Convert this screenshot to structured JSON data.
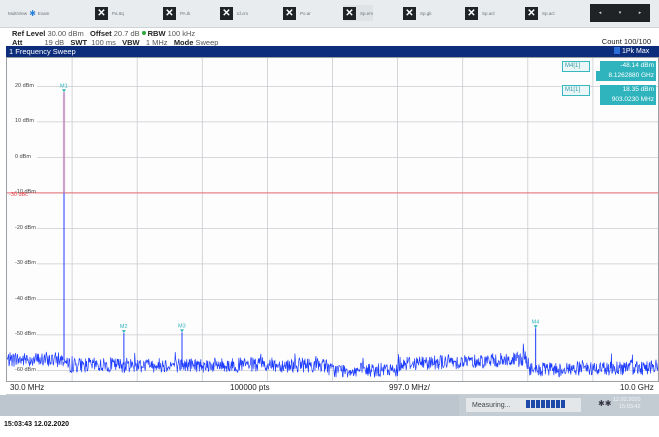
{
  "softkeys": [
    {
      "label": "MultiView"
    },
    {
      "label": "Exam"
    },
    {
      "label": "Pa.Itq"
    },
    {
      "label": "PA.Ik"
    },
    {
      "label": "Id.cm"
    },
    {
      "label": "Po.ar"
    },
    {
      "label": "Sp.em"
    },
    {
      "label": "Sp.gk"
    },
    {
      "label": "Sp.acl"
    },
    {
      "label": "Sp.acl"
    }
  ],
  "nav_icons": [
    "arrow-left-icon",
    "arrow-down-icon",
    "arrow-right-icon"
  ],
  "settings": {
    "ref_level_label": "Ref Level",
    "ref_level_value": "30.00 dBm",
    "offset_label": "Offset",
    "offset_value": "20.7 dB",
    "rbw_label": "RBW",
    "rbw_value": "100 kHz",
    "att_label": "Att",
    "att_value": "19 dB",
    "swt_label": "SWT",
    "swt_value": "100 ms",
    "vbw_label": "VBW",
    "vbw_value": "1 MHz",
    "mode_label": "Mode",
    "mode_value": "Sweep",
    "count": "Count 100/100"
  },
  "window": {
    "title": "1 Frequency Sweep",
    "trace": "1Pk Max"
  },
  "markers": {
    "m4_label": "M4[1]",
    "m4_level": "-48.14 dBm",
    "m4_freq": "8.1262880 GHz",
    "m1_label": "M1[1]",
    "m1_level": "18.35 dBm",
    "m1_freq": "903.0230 MHz",
    "plot_labels": [
      "M1",
      "M2",
      "M3",
      "M4"
    ]
  },
  "chart_data": {
    "type": "line",
    "title": "1 Frequency Sweep",
    "xlabel": "",
    "ylabel": "",
    "x_start": "30.0 MHz",
    "x_stop": "10.0 GHz",
    "points": "100000 pts",
    "x_div": "997.0 MHz/",
    "xlim_mhz": [
      30,
      10000
    ],
    "ylim_dbm": [
      -63,
      28
    ],
    "y_ticks": [
      "20 dBm",
      "10 dBm",
      "0 dBm",
      "-10 dBm",
      "-20 dBm",
      "-30 dBm",
      "-40 dBm",
      "-50 dBm",
      "-60 dBm"
    ],
    "threshold_label": "-30 dBc",
    "threshold_dbm": -10,
    "grid": true,
    "series": [
      {
        "color": "#1e3cff",
        "noise_floor_dbm": [
          [
            30,
            -57
          ],
          [
            900,
            -57
          ],
          [
            950,
            -58.5
          ],
          [
            2700,
            -58.5
          ],
          [
            4900,
            -58.5
          ],
          [
            5000,
            -60
          ],
          [
            6000,
            -60
          ],
          [
            6050,
            -58
          ],
          [
            7900,
            -57
          ],
          [
            7950,
            -56
          ],
          [
            8050,
            -60
          ],
          [
            10000,
            -59
          ]
        ],
        "peaks": [
          {
            "x_mhz": 903.0,
            "y_dbm": 18.35
          },
          {
            "x_mhz": 1820.0,
            "y_dbm": -49.5
          },
          {
            "x_mhz": 2710.0,
            "y_dbm": -49.3
          },
          {
            "x_mhz": 8126.3,
            "y_dbm": -48.14
          }
        ]
      }
    ]
  },
  "status": {
    "measuring": "Measuring...",
    "date": "12.02.2020",
    "time": "15:03:42"
  },
  "footer_timestamp": "15:03:43 12.02.2020"
}
